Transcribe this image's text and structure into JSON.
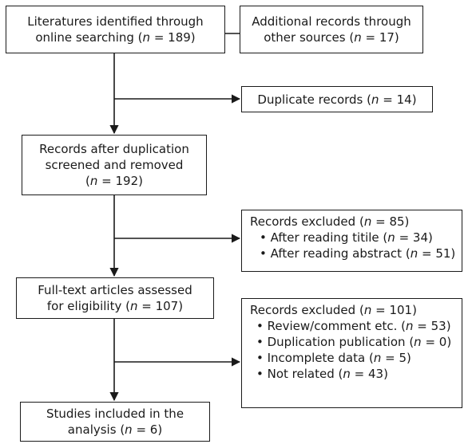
{
  "boxes": {
    "online_search": {
      "lines": [
        "Literatures identified through",
        "online searching (n = 189)"
      ]
    },
    "other_sources": {
      "lines": [
        "Additional records through",
        "other sources (n = 17)"
      ]
    },
    "duplicates": {
      "lines": [
        "Duplicate records (n = 14)"
      ]
    },
    "after_dedup": {
      "lines": [
        "Records after duplication",
        "screened and removed",
        "(n = 192)"
      ]
    },
    "excluded_1": {
      "title": "Records excluded (n = 85)",
      "items": [
        "After reading titile (n = 34)",
        "After reading abstract (n = 51)"
      ]
    },
    "full_text": {
      "lines": [
        "Full-text articles assessed",
        "for eligibility (n = 107)"
      ]
    },
    "excluded_2": {
      "title": "Records excluded (n = 101)",
      "items": [
        "Review/comment etc. (n = 53)",
        "Duplication publication (n = 0)",
        "Incomplete data (n = 5)",
        "Not related (n = 43)"
      ]
    },
    "included": {
      "lines": [
        "Studies included in the",
        "analysis (n = 6)"
      ]
    }
  },
  "colors": {
    "stroke": "#1a1a1a",
    "background": "#ffffff"
  }
}
